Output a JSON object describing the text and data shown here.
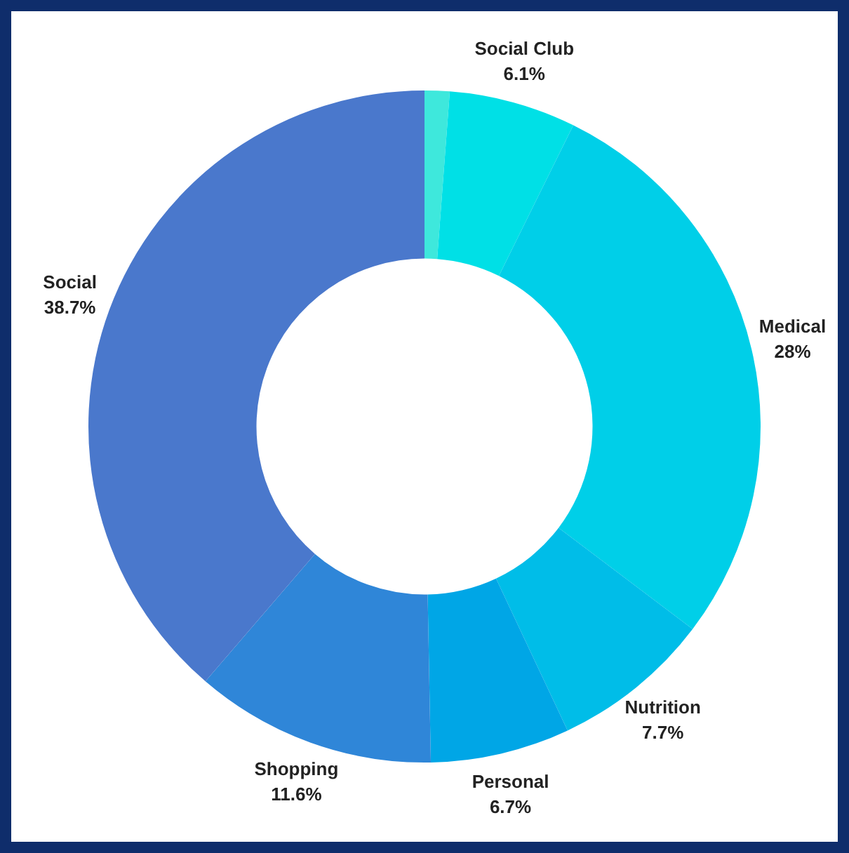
{
  "chart_data": {
    "type": "donut",
    "categories": [
      null,
      "Social Club",
      "Medical",
      "Nutrition",
      "Personal",
      "Shopping",
      "Social"
    ],
    "values": [
      1.2,
      6.1,
      28,
      7.7,
      6.7,
      11.6,
      38.7
    ],
    "value_labels": [
      null,
      "6.1%",
      "28%",
      "7.7%",
      "6.7%",
      "11.6%",
      "38.7%"
    ],
    "colors": [
      "#3ee8dc",
      "#00e0e6",
      "#00cfe8",
      "#00bde8",
      "#00a6e6",
      "#2f86d8",
      "#4a78cc"
    ],
    "legend": false
  }
}
